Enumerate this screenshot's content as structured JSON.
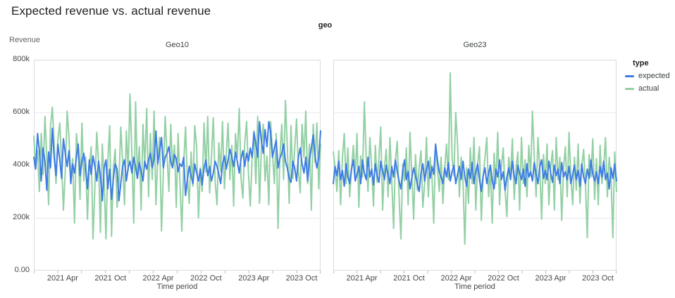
{
  "title": "Expected revenue vs. actual revenue",
  "facet": {
    "label": "geo"
  },
  "y_axis": {
    "label": "Revenue",
    "max_k": 800,
    "ticks": [
      {
        "label": "800k",
        "value_k": 800
      },
      {
        "label": "600k",
        "value_k": 600
      },
      {
        "label": "400k",
        "value_k": 400
      },
      {
        "label": "200k",
        "value_k": 200
      },
      {
        "label": "0.00",
        "value_k": 0
      }
    ]
  },
  "x_axis": {
    "label": "Time period",
    "total_months": 36,
    "domain": "Jan 2021 to Dec 2023, weekly points",
    "ticks": [
      {
        "label": "2021 Apr",
        "month": 3
      },
      {
        "label": "2021 Oct",
        "month": 9
      },
      {
        "label": "2022 Apr",
        "month": 15
      },
      {
        "label": "2022 Oct",
        "month": 21
      },
      {
        "label": "2023 Apr",
        "month": 27
      },
      {
        "label": "2023 Oct",
        "month": 33
      }
    ],
    "minor_tick_months": [
      0,
      3,
      6,
      9,
      12,
      15,
      18,
      21,
      24,
      27,
      30,
      33,
      36
    ]
  },
  "legend": {
    "title": "type",
    "items": [
      {
        "label": "expected",
        "color": "#3d7ce4"
      },
      {
        "label": "actual",
        "color": "#93d0a4"
      }
    ]
  },
  "colors": {
    "plot_border": "#dadce0",
    "gridline": "#e9eaec",
    "axis_tick_mark": "#b6babd",
    "expected": "#3d7ce4",
    "actual": "#93d0a4"
  },
  "chart_data": [
    {
      "type": "line",
      "title": "Geo10",
      "xlabel": "Time period",
      "ylabel": "Revenue",
      "ylim_k": [
        0,
        800
      ],
      "unit": "thousands",
      "x_domain": "2021-01 to 2023-12 weekly",
      "series": [
        {
          "name": "expected",
          "color": "#3d7ce4",
          "values_k": [
            430,
            385,
            520,
            455,
            340,
            465,
            415,
            305,
            450,
            390,
            540,
            430,
            360,
            480,
            420,
            350,
            500,
            445,
            395,
            455,
            330,
            405,
            370,
            430,
            480,
            360,
            415,
            445,
            390,
            310,
            420,
            365,
            435,
            395,
            340,
            415,
            360,
            265,
            390,
            420,
            310,
            385,
            270,
            350,
            405,
            385,
            265,
            330,
            395,
            420,
            340,
            390,
            415,
            370,
            430,
            395,
            350,
            410,
            375,
            340,
            415,
            385,
            420,
            445,
            390,
            425,
            530,
            405,
            455,
            505,
            390,
            430,
            445,
            470,
            415,
            390,
            440,
            425,
            375,
            405,
            395,
            430,
            285,
            345,
            395,
            360,
            330,
            405,
            370,
            340,
            385,
            325,
            390,
            420,
            360,
            395,
            340,
            370,
            415,
            395,
            365,
            330,
            405,
            435,
            385,
            420,
            460,
            430,
            395,
            450,
            415,
            370,
            425,
            455,
            395,
            445,
            415,
            465,
            430,
            525,
            480,
            430,
            565,
            490,
            445,
            535,
            470,
            565,
            525,
            430,
            465,
            495,
            390,
            425,
            445,
            480,
            415,
            390,
            350,
            335,
            415,
            390,
            340,
            430,
            465,
            405,
            370,
            430,
            340,
            420,
            465,
            515,
            435,
            390,
            425,
            530
          ]
        },
        {
          "name": "actual",
          "color": "#93d0a4",
          "values_k": [
            510,
            390,
            455,
            300,
            520,
            365,
            585,
            430,
            250,
            545,
            620,
            480,
            330,
            495,
            560,
            410,
            230,
            375,
            605,
            505,
            345,
            425,
            180,
            520,
            450,
            270,
            560,
            340,
            430,
            195,
            385,
            470,
            120,
            320,
            525,
            410,
            145,
            480,
            335,
            120,
            415,
            550,
            130,
            390,
            460,
            240,
            335,
            545,
            415,
            250,
            530,
            380,
            670,
            440,
            180,
            640,
            360,
            470,
            230,
            555,
            395,
            615,
            280,
            520,
            345,
            605,
            250,
            430,
            505,
            150,
            375,
            585,
            435,
            300,
            555,
            395,
            475,
            240,
            520,
            330,
            150,
            405,
            545,
            350,
            255,
            450,
            320,
            550,
            470,
            200,
            390,
            300,
            560,
            375,
            585,
            295,
            430,
            580,
            340,
            250,
            485,
            375,
            565,
            310,
            435,
            560,
            345,
            475,
            245,
            520,
            430,
            615,
            350,
            275,
            480,
            565,
            370,
            245,
            425,
            530,
            330,
            585,
            255,
            470,
            555,
            340,
            435,
            250,
            565,
            445,
            330,
            520,
            160,
            430,
            555,
            345,
            645,
            475,
            255,
            550,
            350,
            460,
            575,
            380,
            295,
            555,
            430,
            605,
            330,
            480,
            230,
            555,
            410,
            560,
            310,
            480
          ]
        }
      ]
    },
    {
      "type": "line",
      "title": "Geo23",
      "xlabel": "Time period",
      "ylabel": "Revenue",
      "ylim_k": [
        0,
        800
      ],
      "unit": "thousands",
      "x_domain": "2021-01 to 2023-12 weekly",
      "series": [
        {
          "name": "expected",
          "color": "#3d7ce4",
          "values_k": [
            330,
            395,
            360,
            415,
            345,
            380,
            320,
            405,
            355,
            330,
            385,
            420,
            340,
            365,
            395,
            330,
            420,
            370,
            345,
            430,
            355,
            385,
            325,
            405,
            360,
            335,
            415,
            380,
            345,
            400,
            365,
            330,
            395,
            355,
            420,
            375,
            340,
            310,
            380,
            420,
            345,
            375,
            310,
            350,
            390,
            360,
            330,
            300,
            370,
            405,
            340,
            385,
            415,
            350,
            395,
            365,
            480,
            420,
            375,
            355,
            330,
            390,
            355,
            410,
            340,
            375,
            400,
            330,
            365,
            395,
            345,
            415,
            355,
            320,
            385,
            350,
            410,
            330,
            375,
            405,
            345,
            300,
            360,
            390,
            330,
            370,
            400,
            340,
            310,
            385,
            355,
            420,
            345,
            375,
            305,
            355,
            390,
            345,
            415,
            360,
            330,
            400,
            370,
            345,
            385,
            320,
            405,
            355,
            375,
            340,
            410,
            365,
            330,
            395,
            420,
            350,
            380,
            345,
            415,
            370,
            335,
            400,
            360,
            385,
            330,
            410,
            355,
            375,
            345,
            395,
            330,
            365,
            400,
            345,
            380,
            320,
            405,
            355,
            330,
            385,
            350,
            420,
            365,
            340,
            375,
            330,
            395,
            355,
            415,
            345,
            370,
            310,
            390,
            350,
            405,
            340
          ]
        },
        {
          "name": "actual",
          "color": "#93d0a4",
          "values_k": [
            450,
            390,
            300,
            455,
            250,
            430,
            520,
            330,
            465,
            280,
            385,
            475,
            345,
            520,
            240,
            435,
            355,
            640,
            430,
            300,
            505,
            390,
            245,
            475,
            335,
            425,
            545,
            230,
            390,
            460,
            280,
            505,
            345,
            160,
            420,
            490,
            280,
            120,
            405,
            340,
            465,
            250,
            525,
            360,
            195,
            440,
            305,
            390,
            455,
            240,
            330,
            505,
            280,
            430,
            355,
            180,
            475,
            395,
            300,
            430,
            255,
            390,
            480,
            345,
            750,
            430,
            360,
            600,
            480,
            280,
            430,
            345,
            100,
            390,
            255,
            465,
            330,
            505,
            230,
            405,
            470,
            190,
            355,
            430,
            505,
            280,
            390,
            180,
            445,
            330,
            525,
            250,
            395,
            465,
            305,
            205,
            430,
            355,
            500,
            270,
            390,
            450,
            230,
            505,
            330,
            420,
            280,
            475,
            360,
            605,
            430,
            280,
            505,
            390,
            195,
            440,
            330,
            480,
            250,
            395,
            455,
            230,
            505,
            345,
            430,
            190,
            390,
            470,
            280,
            525,
            355,
            250,
            430,
            305,
            480,
            255,
            395,
            460,
            330,
            125,
            440,
            355,
            500,
            270,
            425,
            250,
            475,
            330,
            395,
            505,
            280,
            430,
            355,
            125,
            450,
            300
          ]
        }
      ]
    }
  ]
}
